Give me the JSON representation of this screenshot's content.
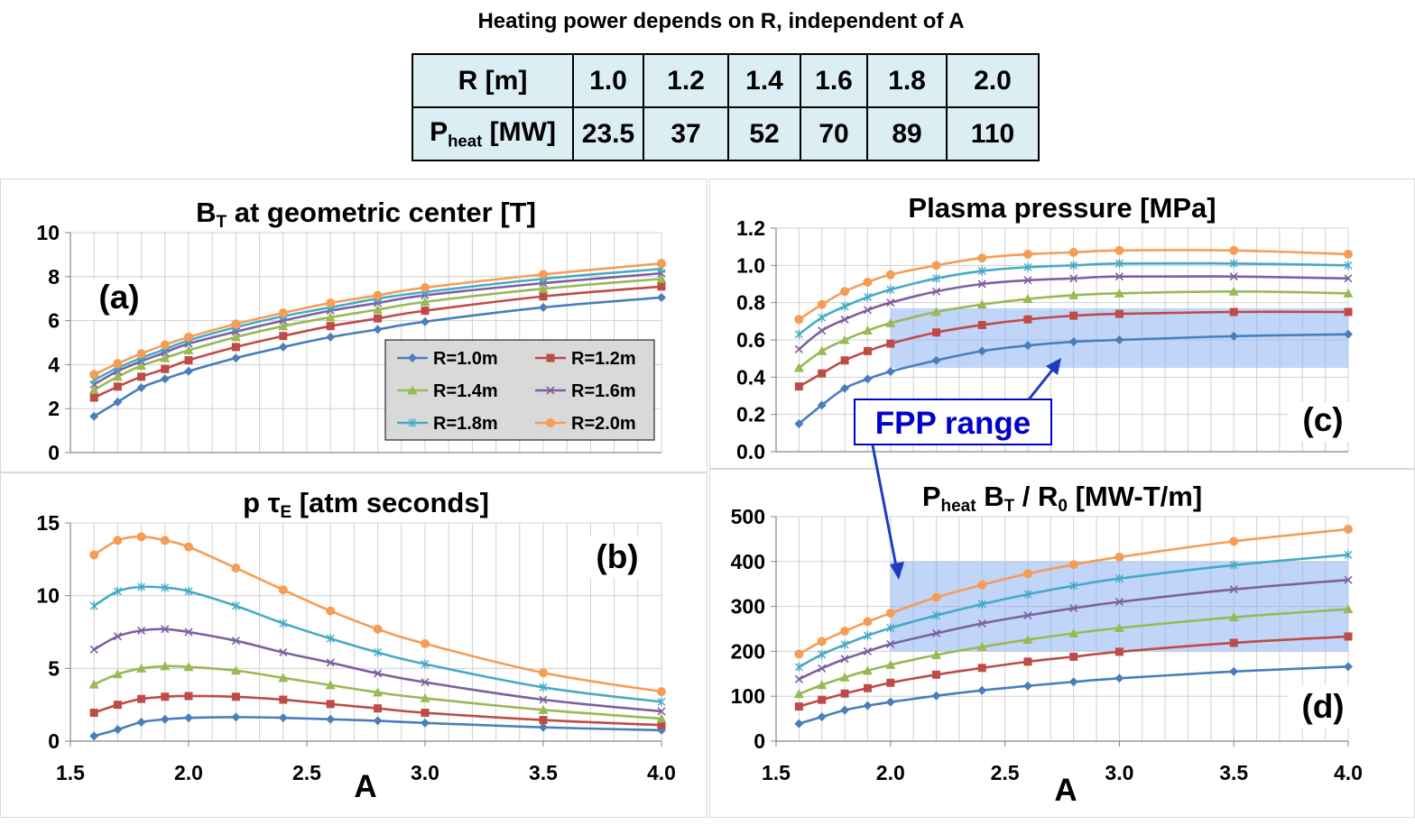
{
  "page_title": "Heating power depends on R, independent of A",
  "table": {
    "row_labels": {
      "r": "R [m]",
      "p_main": "P",
      "p_sub": "heat",
      "p_unit": " [MW]"
    },
    "r_values": [
      "1.0",
      "1.2",
      "1.4",
      "1.6",
      "1.8",
      "2.0"
    ],
    "p_values": [
      "23.5",
      "37",
      "52",
      "70",
      "89",
      "110"
    ]
  },
  "colors": {
    "R=1.0m": "#4a7ebb",
    "R=1.2m": "#be4b48",
    "R=1.4m": "#98b954",
    "R=1.6m": "#7d60a0",
    "R=1.8m": "#46aac5",
    "R=2.0m": "#f59d56",
    "band": "#8db3f2"
  },
  "annotation": "FPP range",
  "shared_xlabel": "A",
  "chart_data": [
    {
      "id": "a",
      "type": "line",
      "panel_label": "(a)",
      "title": "B",
      "title_sub": "T",
      "title_rest": " at geometric center [T]",
      "x": [
        1.6,
        1.7,
        1.8,
        1.9,
        2.0,
        2.2,
        2.4,
        2.6,
        2.8,
        3.0,
        3.5,
        4.0
      ],
      "xlim": [
        1.5,
        4.0
      ],
      "ylim": [
        0,
        10
      ],
      "yticks": [
        "0",
        "2",
        "4",
        "6",
        "8",
        "10"
      ],
      "legend": "inside, lower right",
      "series": [
        {
          "name": "R=1.0m",
          "marker": "diamond",
          "values": [
            1.65,
            2.3,
            2.95,
            3.35,
            3.7,
            4.3,
            4.8,
            5.25,
            5.6,
            5.95,
            6.6,
            7.05
          ]
        },
        {
          "name": "R=1.2m",
          "marker": "square",
          "values": [
            2.5,
            3.0,
            3.45,
            3.8,
            4.2,
            4.8,
            5.3,
            5.75,
            6.1,
            6.45,
            7.1,
            7.55
          ]
        },
        {
          "name": "R=1.4m",
          "marker": "triangle",
          "values": [
            2.85,
            3.45,
            3.95,
            4.3,
            4.65,
            5.25,
            5.75,
            6.15,
            6.5,
            6.85,
            7.45,
            7.9
          ]
        },
        {
          "name": "R=1.6m",
          "marker": "x",
          "values": [
            3.1,
            3.7,
            4.15,
            4.55,
            4.95,
            5.5,
            6.0,
            6.45,
            6.8,
            7.15,
            7.7,
            8.15
          ]
        },
        {
          "name": "R=1.8m",
          "marker": "star",
          "values": [
            3.3,
            3.85,
            4.3,
            4.7,
            5.1,
            5.7,
            6.2,
            6.6,
            7.0,
            7.3,
            7.9,
            8.35
          ]
        },
        {
          "name": "R=2.0m",
          "marker": "circle",
          "values": [
            3.55,
            4.05,
            4.5,
            4.9,
            5.25,
            5.85,
            6.35,
            6.8,
            7.15,
            7.5,
            8.1,
            8.6
          ]
        }
      ]
    },
    {
      "id": "b",
      "type": "line",
      "panel_label": "(b)",
      "title": "p τ",
      "title_sub": "E",
      "title_rest": " [atm seconds]",
      "x": [
        1.6,
        1.7,
        1.8,
        1.9,
        2.0,
        2.2,
        2.4,
        2.6,
        2.8,
        3.0,
        3.5,
        4.0
      ],
      "xlim": [
        1.5,
        4.0
      ],
      "ylim": [
        0,
        15
      ],
      "xticks": [
        "1.5",
        "2.0",
        "2.5",
        "3.0",
        "3.5",
        "4.0"
      ],
      "yticks": [
        "0",
        "5",
        "10",
        "15"
      ],
      "series": [
        {
          "name": "R=1.0m",
          "marker": "diamond",
          "values": [
            0.35,
            0.8,
            1.3,
            1.5,
            1.6,
            1.65,
            1.6,
            1.5,
            1.4,
            1.25,
            0.95,
            0.75
          ]
        },
        {
          "name": "R=1.2m",
          "marker": "square",
          "values": [
            1.95,
            2.5,
            2.9,
            3.05,
            3.1,
            3.05,
            2.85,
            2.55,
            2.25,
            1.95,
            1.45,
            1.1
          ]
        },
        {
          "name": "R=1.4m",
          "marker": "triangle",
          "values": [
            3.9,
            4.6,
            5.0,
            5.15,
            5.1,
            4.85,
            4.35,
            3.85,
            3.35,
            2.95,
            2.15,
            1.55
          ]
        },
        {
          "name": "R=1.6m",
          "marker": "x",
          "values": [
            6.3,
            7.2,
            7.6,
            7.7,
            7.5,
            6.9,
            6.1,
            5.4,
            4.65,
            4.05,
            2.85,
            2.05
          ]
        },
        {
          "name": "R=1.8m",
          "marker": "star",
          "values": [
            9.3,
            10.3,
            10.6,
            10.55,
            10.3,
            9.3,
            8.1,
            7.05,
            6.1,
            5.3,
            3.7,
            2.7
          ]
        },
        {
          "name": "R=2.0m",
          "marker": "circle",
          "values": [
            12.8,
            13.8,
            14.05,
            13.8,
            13.35,
            11.9,
            10.4,
            8.95,
            7.7,
            6.7,
            4.7,
            3.4
          ]
        }
      ]
    },
    {
      "id": "c",
      "type": "line",
      "panel_label": "(c)",
      "title": "Plasma pressure [MPa]",
      "x": [
        1.6,
        1.7,
        1.8,
        1.9,
        2.0,
        2.2,
        2.4,
        2.6,
        2.8,
        3.0,
        3.5,
        4.0
      ],
      "xlim": [
        1.5,
        4.0
      ],
      "ylim": [
        0,
        1.2
      ],
      "yticks": [
        "0.0",
        "0.2",
        "0.4",
        "0.6",
        "0.8",
        "1.0",
        "1.2"
      ],
      "band": {
        "x": [
          2.0,
          4.0
        ],
        "y": [
          0.45,
          0.77
        ]
      },
      "series": [
        {
          "name": "R=1.0m",
          "marker": "diamond",
          "values": [
            0.15,
            0.25,
            0.34,
            0.39,
            0.43,
            0.49,
            0.54,
            0.57,
            0.59,
            0.6,
            0.62,
            0.63
          ]
        },
        {
          "name": "R=1.2m",
          "marker": "square",
          "values": [
            0.35,
            0.42,
            0.49,
            0.54,
            0.58,
            0.64,
            0.68,
            0.71,
            0.73,
            0.74,
            0.75,
            0.75
          ]
        },
        {
          "name": "R=1.4m",
          "marker": "triangle",
          "values": [
            0.45,
            0.54,
            0.6,
            0.65,
            0.69,
            0.75,
            0.79,
            0.82,
            0.84,
            0.85,
            0.86,
            0.85
          ]
        },
        {
          "name": "R=1.6m",
          "marker": "x",
          "values": [
            0.55,
            0.65,
            0.71,
            0.76,
            0.8,
            0.86,
            0.9,
            0.92,
            0.93,
            0.94,
            0.94,
            0.93
          ]
        },
        {
          "name": "R=1.8m",
          "marker": "star",
          "values": [
            0.63,
            0.72,
            0.78,
            0.83,
            0.87,
            0.93,
            0.97,
            0.99,
            1.0,
            1.01,
            1.01,
            1.0
          ]
        },
        {
          "name": "R=2.0m",
          "marker": "circle",
          "values": [
            0.71,
            0.79,
            0.86,
            0.91,
            0.95,
            1.0,
            1.04,
            1.06,
            1.07,
            1.08,
            1.08,
            1.06
          ]
        }
      ]
    },
    {
      "id": "d",
      "type": "line",
      "panel_label": "(d)",
      "title": "P",
      "title_sub": "heat",
      "title_mid": " B",
      "title_sub2": "T",
      "title_mid2": " / R",
      "title_sub3": "0",
      "title_rest": " [MW-T/m]",
      "x": [
        1.6,
        1.7,
        1.8,
        1.9,
        2.0,
        2.2,
        2.4,
        2.6,
        2.8,
        3.0,
        3.5,
        4.0
      ],
      "xlim": [
        1.5,
        4.0
      ],
      "ylim": [
        0,
        500
      ],
      "xticks": [
        "1.5",
        "2.0",
        "2.5",
        "3.0",
        "3.5",
        "4.0"
      ],
      "yticks": [
        "0",
        "100",
        "200",
        "300",
        "400",
        "500"
      ],
      "band": {
        "x": [
          2.0,
          4.0
        ],
        "y": [
          200,
          400
        ]
      },
      "series": [
        {
          "name": "R=1.0m",
          "marker": "diamond",
          "values": [
            39,
            54,
            69,
            79,
            87,
            101,
            113,
            123,
            132,
            140,
            155,
            166
          ]
        },
        {
          "name": "R=1.2m",
          "marker": "square",
          "values": [
            77,
            92,
            106,
            118,
            130,
            148,
            163,
            177,
            188,
            199,
            219,
            233
          ]
        },
        {
          "name": "R=1.4m",
          "marker": "triangle",
          "values": [
            105,
            125,
            142,
            157,
            170,
            192,
            210,
            226,
            240,
            252,
            276,
            294
          ]
        },
        {
          "name": "R=1.6m",
          "marker": "x",
          "values": [
            138,
            162,
            183,
            200,
            216,
            240,
            262,
            280,
            296,
            310,
            338,
            359
          ]
        },
        {
          "name": "R=1.8m",
          "marker": "star",
          "values": [
            165,
            193,
            215,
            235,
            252,
            280,
            305,
            327,
            346,
            362,
            392,
            415
          ]
        },
        {
          "name": "R=2.0m",
          "marker": "circle",
          "values": [
            194,
            222,
            245,
            266,
            285,
            320,
            348,
            373,
            393,
            410,
            445,
            472
          ]
        }
      ]
    }
  ]
}
